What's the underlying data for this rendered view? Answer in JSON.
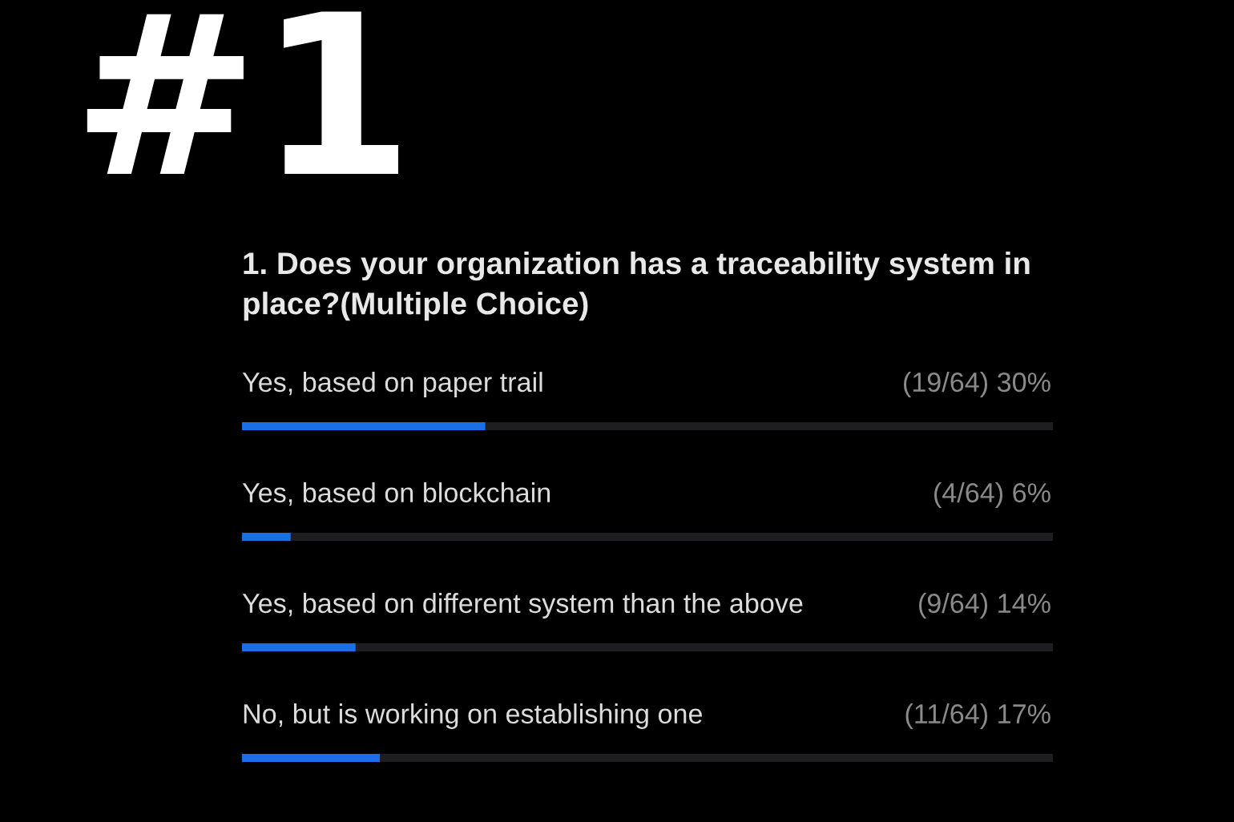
{
  "chart_data": {
    "type": "bar",
    "orientation": "horizontal",
    "title": "#1",
    "subtitle": "1. Does your organization has a traceability system in place?(Multiple Choice)",
    "categories": [
      "Yes, based on paper trail",
      "Yes, based on blockchain",
      "Yes, based on different system than the above",
      "No, but is working on establishing one"
    ],
    "values": [
      30,
      6,
      14,
      17
    ],
    "value_labels": [
      "(19/64) 30%",
      "(4/64) 6%",
      "(9/64) 14%",
      "(11/64) 17%"
    ],
    "color": "#1a6fe6",
    "xlim": [
      0,
      100
    ],
    "tick_labels": "y"
  }
}
